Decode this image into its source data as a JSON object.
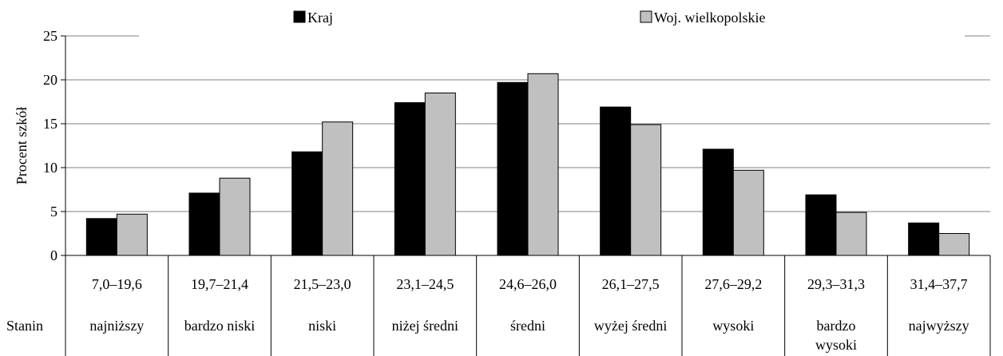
{
  "chart_data": {
    "type": "bar",
    "title": "",
    "ylabel": "Procent szkół",
    "ylim": [
      0,
      25
    ],
    "yticks": [
      0,
      5,
      10,
      15,
      20,
      25
    ],
    "grid": true,
    "legend_position": "top",
    "categories": [
      "7,0–19,6",
      "19,7–21,4",
      "21,5–23,0",
      "23,1–24,5",
      "24,6–26,0",
      "26,1–27,5",
      "27,6–29,2",
      "29,3–31,3",
      "31,4–37,7"
    ],
    "stanin_label": "Stanin",
    "stanin_names": [
      "najniższy",
      "bardzo niski",
      "niski",
      "niżej średni",
      "średni",
      "wyżej średni",
      "wysoki",
      "bardzo wysoki",
      "najwyższy"
    ],
    "series": [
      {
        "name": "Kraj",
        "color": "#000000",
        "values": [
          4.2,
          7.1,
          11.8,
          17.4,
          19.7,
          16.9,
          12.1,
          6.9,
          3.7
        ]
      },
      {
        "name": "Woj. wielkopolskie",
        "color": "#c0c0c0",
        "values": [
          4.7,
          8.8,
          15.2,
          18.5,
          20.7,
          14.9,
          9.7,
          4.9,
          2.5
        ]
      }
    ]
  }
}
